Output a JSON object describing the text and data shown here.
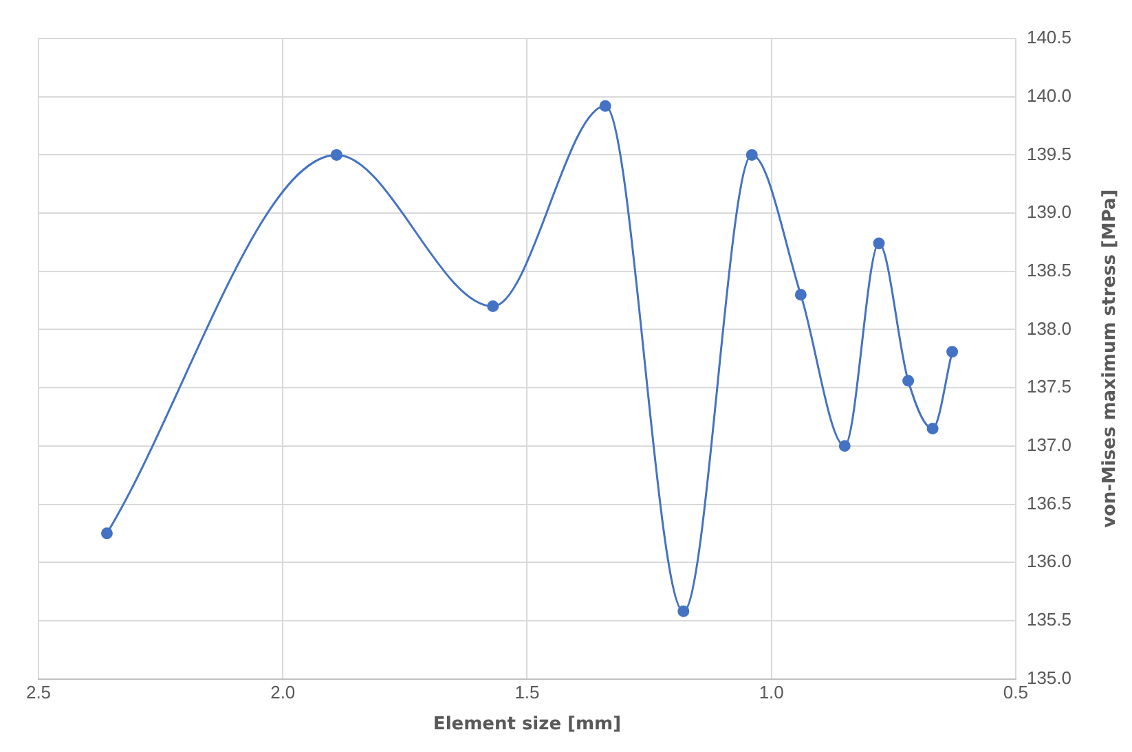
{
  "chart_data": {
    "type": "line",
    "xlabel": "Element size [mm]",
    "ylabel": "von-Mises maximum stress [MPa]",
    "x": [
      2.36,
      1.89,
      1.57,
      1.34,
      1.18,
      1.04,
      0.94,
      0.85,
      0.78,
      0.72,
      0.67,
      0.63
    ],
    "series": [
      {
        "color": "#4472c4",
        "values": [
          136.25,
          139.5,
          138.2,
          139.92,
          135.58,
          139.5,
          138.3,
          137.0,
          138.74,
          137.56,
          137.15,
          137.81
        ]
      }
    ],
    "xlim": [
      2.5,
      0.5
    ],
    "xticks": [
      2.5,
      {
        "value": 2.0,
        "label": "2.0"
      },
      1.5,
      {
        "value": 1.0,
        "label": "1.0"
      },
      0.5
    ],
    "ylim": [
      135.0,
      140.5
    ],
    "yticks": [
      {
        "value": 135.0,
        "label": "135.0"
      },
      135.5,
      {
        "value": 136.0,
        "label": "136.0"
      },
      136.5,
      {
        "value": 137.0,
        "label": "137.0"
      },
      137.5,
      {
        "value": 138.0,
        "label": "138.0"
      },
      138.5,
      {
        "value": 139.0,
        "label": "139.0"
      },
      139.5,
      {
        "value": 140.0,
        "label": "140.0"
      },
      140.5
    ],
    "grid": true,
    "marker": "circle",
    "line_style": "solid",
    "legend": false
  }
}
